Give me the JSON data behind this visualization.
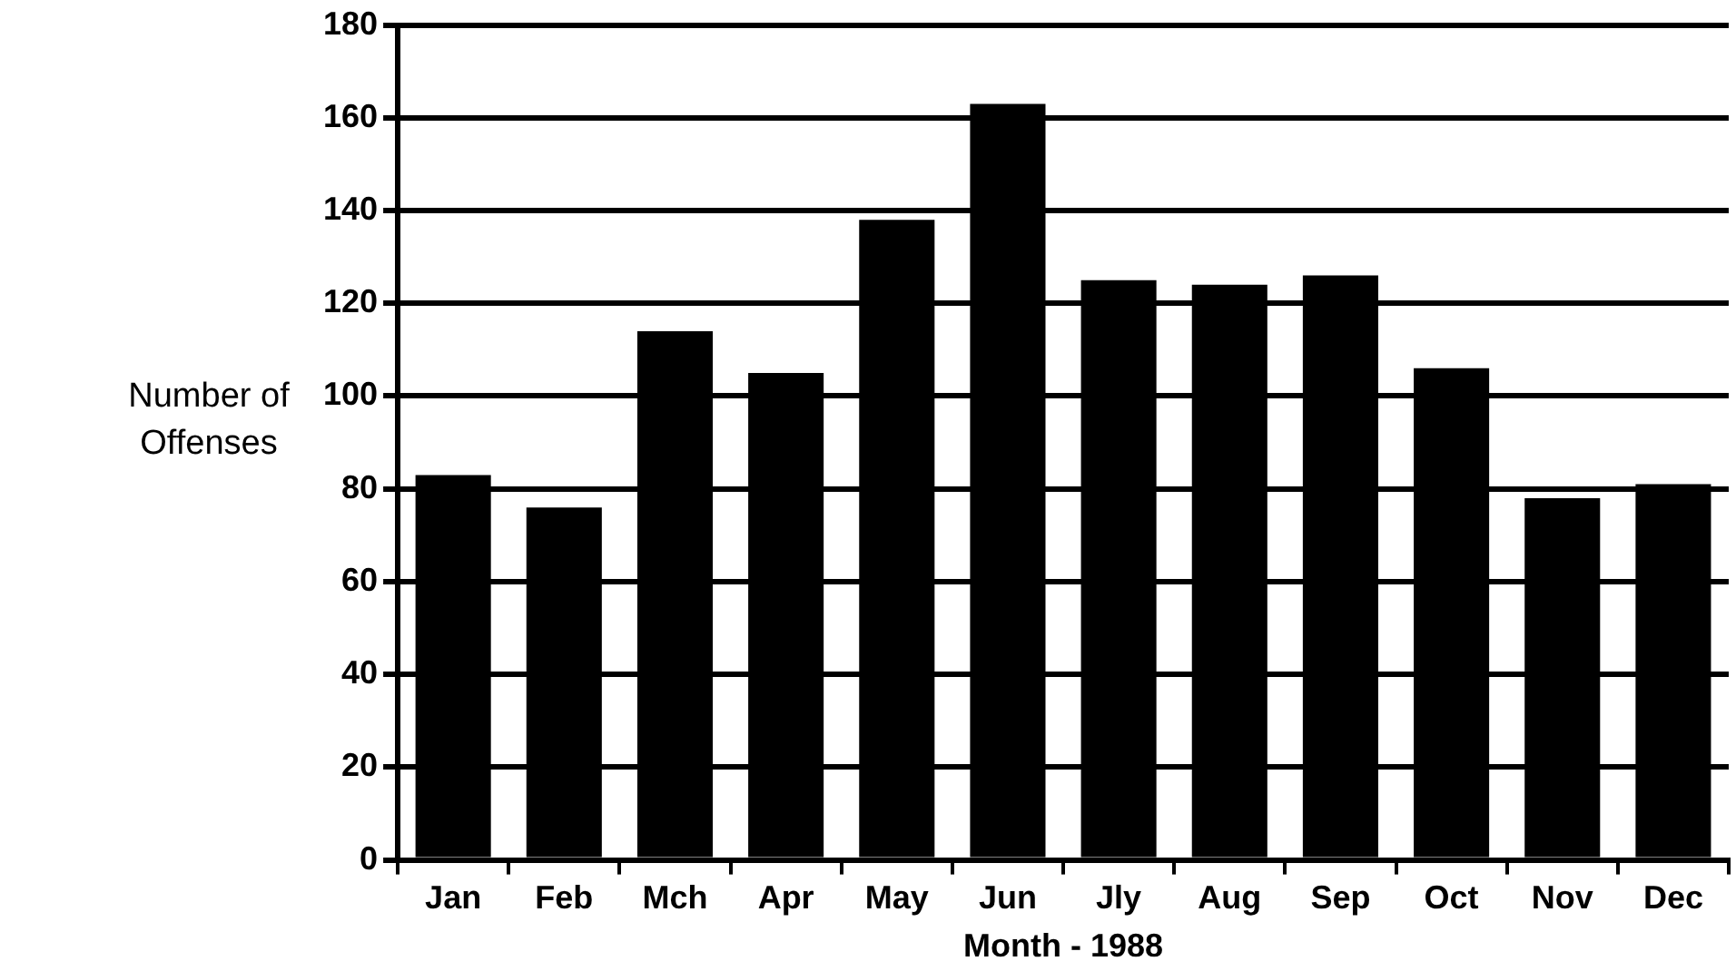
{
  "chart_data": {
    "type": "bar",
    "xlabel": "Month - 1988",
    "ylabel": "Number of Offenses",
    "categories": [
      "Jan",
      "Feb",
      "Mch",
      "Apr",
      "May",
      "Jun",
      "Jly",
      "Aug",
      "Sep",
      "Oct",
      "Nov",
      "Dec"
    ],
    "values": [
      83,
      76,
      114,
      105,
      138,
      163,
      125,
      124,
      126,
      106,
      78,
      81
    ],
    "color": "#000000",
    "ylim": [
      0,
      180
    ],
    "yticks": [
      0,
      20,
      40,
      60,
      80,
      100,
      120,
      140,
      160,
      180
    ],
    "grid": "y",
    "legend": false
  }
}
